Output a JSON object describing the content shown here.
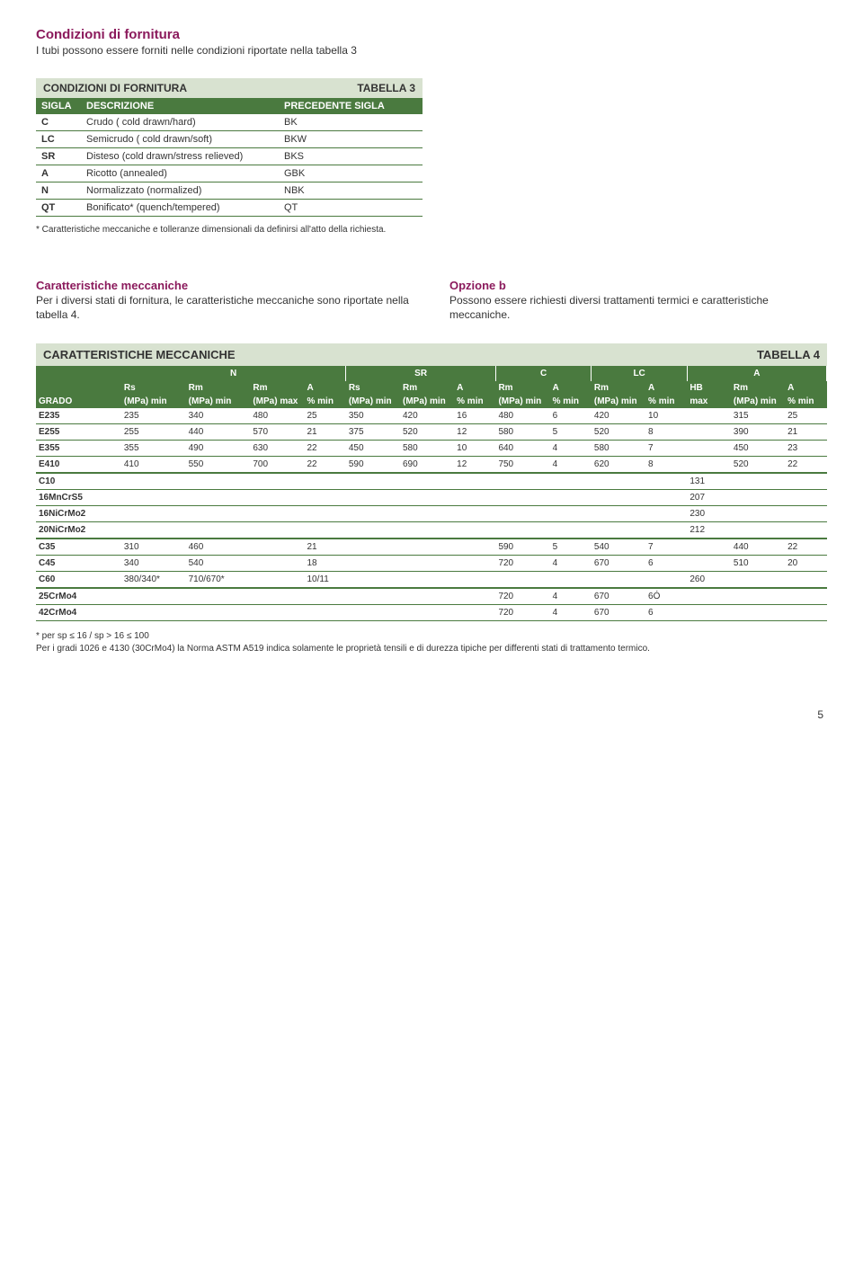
{
  "sec1": {
    "title": "Condizioni di fornitura",
    "sub": "I tubi possono essere forniti nelle condizioni riportate nella tabella 3"
  },
  "tbl3": {
    "title": "CONDIZIONI DI FORNITURA",
    "label": "TABELLA 3",
    "cols": [
      "SIGLA",
      "DESCRIZIONE",
      "PRECEDENTE SIGLA"
    ],
    "rows": [
      [
        "C",
        "Crudo ( cold drawn/hard)",
        "BK"
      ],
      [
        "LC",
        "Semicrudo ( cold drawn/soft)",
        "BKW"
      ],
      [
        "SR",
        "Disteso (cold drawn/stress relieved)",
        "BKS"
      ],
      [
        "A",
        "Ricotto (annealed)",
        "GBK"
      ],
      [
        "N",
        "Normalizzato (normalized)",
        "NBK"
      ],
      [
        "QT",
        "Bonificato* (quench/tempered)",
        "QT"
      ]
    ],
    "note": "* Caratteristiche meccaniche e tolleranze dimensionali da definirsi all'atto della richiesta."
  },
  "sec2": {
    "left_h": "Caratteristiche meccaniche",
    "left_p": "Per i diversi stati di fornitura, le caratteristiche meccaniche sono riportate nella tabella 4.",
    "right_h": "Opzione b",
    "right_p": "Possono essere richiesti diversi trattamenti termici e caratteristiche meccaniche."
  },
  "tbl4": {
    "title": "CARATTERISTICHE MECCANICHE",
    "label": "TABELLA 4",
    "groups": [
      "",
      "N",
      "SR",
      "C",
      "LC",
      "A"
    ],
    "group_spans": [
      1,
      4,
      3,
      2,
      2,
      3
    ],
    "hdr2": [
      "",
      "Rs",
      "Rm",
      "Rm",
      "A",
      "Rs",
      "Rm",
      "A",
      "Rm",
      "A",
      "Rm",
      "A",
      "HB",
      "Rm",
      "A"
    ],
    "hdr3": [
      "GRADO",
      "(MPa) min",
      "(MPa) min",
      "(MPa) max",
      "% min",
      "(MPa) min",
      "(MPa) min",
      "% min",
      "(MPa) min",
      "% min",
      "(MPa) min",
      "% min",
      "max",
      "(MPa) min",
      "% min"
    ],
    "rows": [
      [
        "E235",
        "235",
        "340",
        "480",
        "25",
        "350",
        "420",
        "16",
        "480",
        "6",
        "420",
        "10",
        "",
        "315",
        "25"
      ],
      [
        "E255",
        "255",
        "440",
        "570",
        "21",
        "375",
        "520",
        "12",
        "580",
        "5",
        "520",
        "8",
        "",
        "390",
        "21"
      ],
      [
        "E355",
        "355",
        "490",
        "630",
        "22",
        "450",
        "580",
        "10",
        "640",
        "4",
        "580",
        "7",
        "",
        "450",
        "23"
      ],
      [
        "E410",
        "410",
        "550",
        "700",
        "22",
        "590",
        "690",
        "12",
        "750",
        "4",
        "620",
        "8",
        "",
        "520",
        "22"
      ],
      [
        "C10",
        "",
        "",
        "",
        "",
        "",
        "",
        "",
        "",
        "",
        "",
        "",
        "131",
        "",
        ""
      ],
      [
        "16MnCrS5",
        "",
        "",
        "",
        "",
        "",
        "",
        "",
        "",
        "",
        "",
        "",
        "207",
        "",
        ""
      ],
      [
        "16NiCrMo2",
        "",
        "",
        "",
        "",
        "",
        "",
        "",
        "",
        "",
        "",
        "",
        "230",
        "",
        ""
      ],
      [
        "20NiCrMo2",
        "",
        "",
        "",
        "",
        "",
        "",
        "",
        "",
        "",
        "",
        "",
        "212",
        "",
        ""
      ],
      [
        "C35",
        "310",
        "460",
        "",
        "21",
        "",
        "",
        "",
        "590",
        "5",
        "540",
        "7",
        "",
        "440",
        "22"
      ],
      [
        "C45",
        "340",
        "540",
        "",
        "18",
        "",
        "",
        "",
        "720",
        "4",
        "670",
        "6",
        "",
        "510",
        "20"
      ],
      [
        "C60",
        "380/340*",
        "710/670*",
        "",
        "10/11",
        "",
        "",
        "",
        "",
        "",
        "",
        "",
        "260",
        "",
        ""
      ],
      [
        "25CrMo4",
        "",
        "",
        "",
        "",
        "",
        "",
        "",
        "720",
        "4",
        "670",
        "6Ó",
        "",
        "",
        ""
      ],
      [
        "42CrMo4",
        "",
        "",
        "",
        "",
        "",
        "",
        "",
        "720",
        "4",
        "670",
        "6",
        "",
        "",
        ""
      ]
    ],
    "sep_after": [
      3,
      7,
      10
    ],
    "note": "*  per sp ≤ 16 / sp > 16 ≤ 100\nPer i gradi 1026 e 4130 (30CrMo4) la Norma  ASTM A519 indica solamente le proprietà tensili e di durezza tipiche per differenti stati di trattamento termico."
  },
  "pagenum": "5",
  "colors": {
    "accent": "#8b1a5c",
    "table_header": "#4a7a3f",
    "table_band": "#d8e2d0"
  }
}
